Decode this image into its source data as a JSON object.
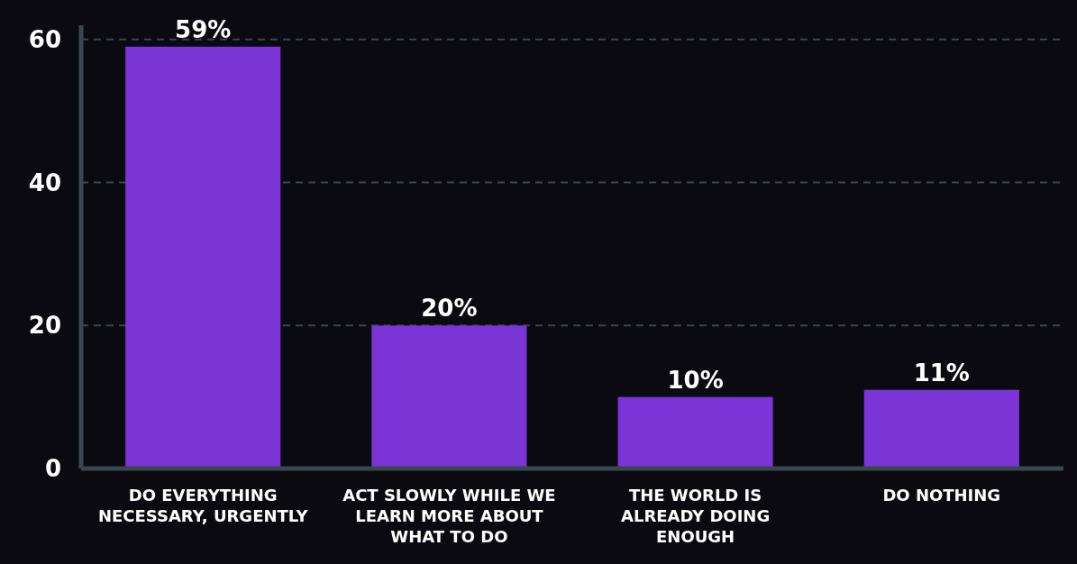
{
  "chart_data": {
    "type": "bar",
    "categories": [
      "DO EVERYTHING NECESSARY, URGENTLY",
      "ACT SLOWLY WHILE WE LEARN MORE ABOUT WHAT TO DO",
      "THE WORLD IS ALREADY DOING ENOUGH",
      "DO NOTHING"
    ],
    "values": [
      59,
      20,
      10,
      11
    ],
    "value_labels": [
      "59%",
      "20%",
      "10%",
      "11%"
    ],
    "color": "#7b35d6",
    "ylim": [
      0,
      62
    ],
    "yticks": [
      0,
      20,
      40,
      60
    ],
    "grid": "y"
  }
}
